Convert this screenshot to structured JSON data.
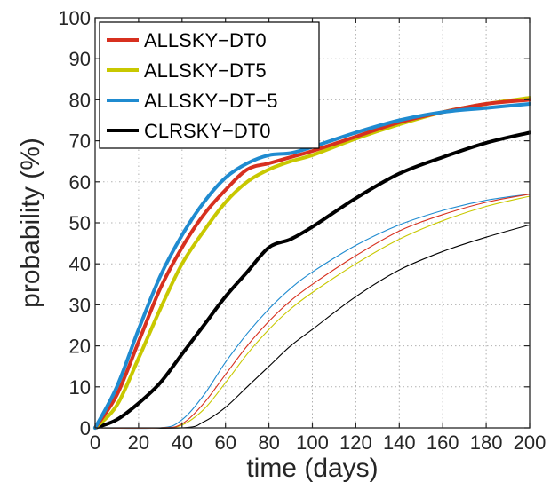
{
  "chart_data": {
    "type": "line",
    "title": "",
    "xlabel": "time (days)",
    "ylabel": "probability (%)",
    "xlim": [
      0,
      200
    ],
    "ylim": [
      0,
      100
    ],
    "xticks": [
      0,
      20,
      40,
      60,
      80,
      100,
      120,
      140,
      160,
      180,
      200
    ],
    "yticks": [
      0,
      10,
      20,
      30,
      40,
      50,
      60,
      70,
      80,
      90,
      100
    ],
    "grid": true,
    "legend_position": "top-left",
    "legend": [
      {
        "name": "ALLSKY−DT0",
        "color": "#d7301f"
      },
      {
        "name": "ALLSKY−DT5",
        "color": "#c8c800"
      },
      {
        "name": "ALLSKY−DT−5",
        "color": "#1f8bd0"
      },
      {
        "name": "CLRSKY−DT0",
        "color": "#000000"
      }
    ],
    "series": [
      {
        "color": "#d7301f",
        "style": "thick",
        "x": [
          0,
          10,
          20,
          30,
          40,
          50,
          60,
          70,
          80,
          90,
          100,
          120,
          140,
          160,
          180,
          200
        ],
        "y": [
          0,
          8,
          21,
          34,
          44,
          52,
          58,
          63,
          64.5,
          66,
          67.5,
          71,
          74.5,
          77,
          79,
          80
        ]
      },
      {
        "color": "#c8c800",
        "style": "thick",
        "x": [
          0,
          10,
          20,
          30,
          40,
          50,
          60,
          70,
          80,
          90,
          100,
          120,
          140,
          160,
          180,
          200
        ],
        "y": [
          0,
          5.5,
          17,
          29,
          40,
          48,
          55,
          60,
          63,
          65,
          66.5,
          70.5,
          74,
          77,
          79,
          80.5
        ]
      },
      {
        "color": "#1f8bd0",
        "style": "thick",
        "x": [
          0,
          10,
          20,
          30,
          40,
          50,
          60,
          70,
          80,
          90,
          100,
          120,
          140,
          160,
          180,
          200
        ],
        "y": [
          0,
          10,
          24,
          37,
          47,
          55,
          61,
          64.5,
          66.5,
          67,
          68.5,
          72,
          75,
          77,
          78,
          79
        ]
      },
      {
        "color": "#000000",
        "style": "thick",
        "x": [
          0,
          10,
          20,
          30,
          40,
          50,
          60,
          70,
          80,
          90,
          100,
          120,
          140,
          160,
          180,
          200
        ],
        "y": [
          0,
          2,
          6,
          11,
          18,
          25,
          32,
          38,
          44,
          46,
          49,
          56,
          62,
          66,
          69.5,
          72
        ]
      },
      {
        "color": "#d7301f",
        "style": "thin",
        "x": [
          0,
          30,
          40,
          50,
          60,
          70,
          80,
          90,
          100,
          120,
          140,
          160,
          180,
          200
        ],
        "y": [
          0,
          0,
          1,
          6,
          13,
          20,
          26,
          31,
          35,
          42,
          48,
          52,
          55,
          57
        ]
      },
      {
        "color": "#c8c800",
        "style": "thin",
        "x": [
          0,
          30,
          40,
          50,
          60,
          70,
          80,
          90,
          100,
          120,
          140,
          160,
          180,
          200
        ],
        "y": [
          0,
          0,
          0.7,
          4.5,
          11,
          18,
          24,
          29,
          33,
          40,
          46,
          50.5,
          54,
          56.5
        ]
      },
      {
        "color": "#1f8bd0",
        "style": "thin",
        "x": [
          0,
          30,
          40,
          50,
          60,
          70,
          80,
          90,
          100,
          120,
          140,
          160,
          180,
          200
        ],
        "y": [
          0,
          0,
          2,
          8,
          16,
          23,
          29,
          34,
          38,
          44.5,
          49.5,
          53,
          55.5,
          57
        ]
      },
      {
        "color": "#000000",
        "style": "thin",
        "x": [
          0,
          40,
          50,
          60,
          70,
          80,
          90,
          100,
          120,
          140,
          160,
          180,
          200
        ],
        "y": [
          0,
          0,
          1.5,
          5,
          10,
          15,
          20,
          24,
          32,
          38.5,
          43,
          46.5,
          49.5
        ]
      }
    ]
  }
}
